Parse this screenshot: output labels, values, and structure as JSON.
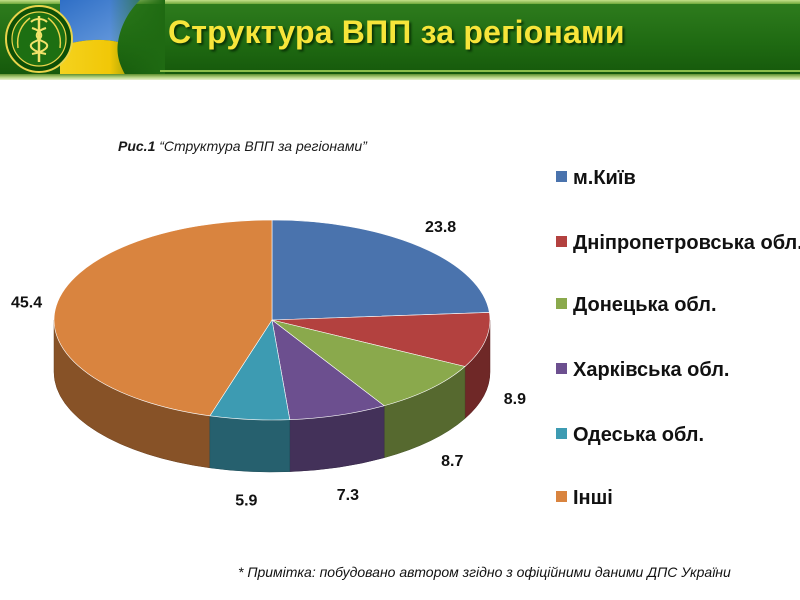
{
  "header": {
    "title": "Структура ВПП за регіонами",
    "colors": {
      "banner": "#1f6a12",
      "title": "#f7e53a"
    }
  },
  "caption": {
    "prefix": "Рис.1",
    "text": "“Структура ВПП за регіонами”"
  },
  "note": "* Примітка: побудовано автором згідно з офіційними даними ДПС України",
  "chart_data": {
    "type": "pie",
    "style": "3d",
    "title": "",
    "legend_position": "right",
    "categories": [
      "м.Київ",
      "Дніпропетровська обл.",
      "Донецька обл.",
      "Харківська обл.",
      "Одеська обл.",
      "Інші"
    ],
    "values": [
      23.8,
      8.9,
      8.7,
      7.3,
      5.9,
      45.4
    ],
    "data_labels": [
      "23.8",
      "8.9",
      "8.7",
      "7.3",
      "5.9",
      "45.4"
    ],
    "colors": [
      "#4a73ad",
      "#b3413f",
      "#8aa94c",
      "#6c4f8f",
      "#3d9bb2",
      "#d9843f"
    ]
  }
}
